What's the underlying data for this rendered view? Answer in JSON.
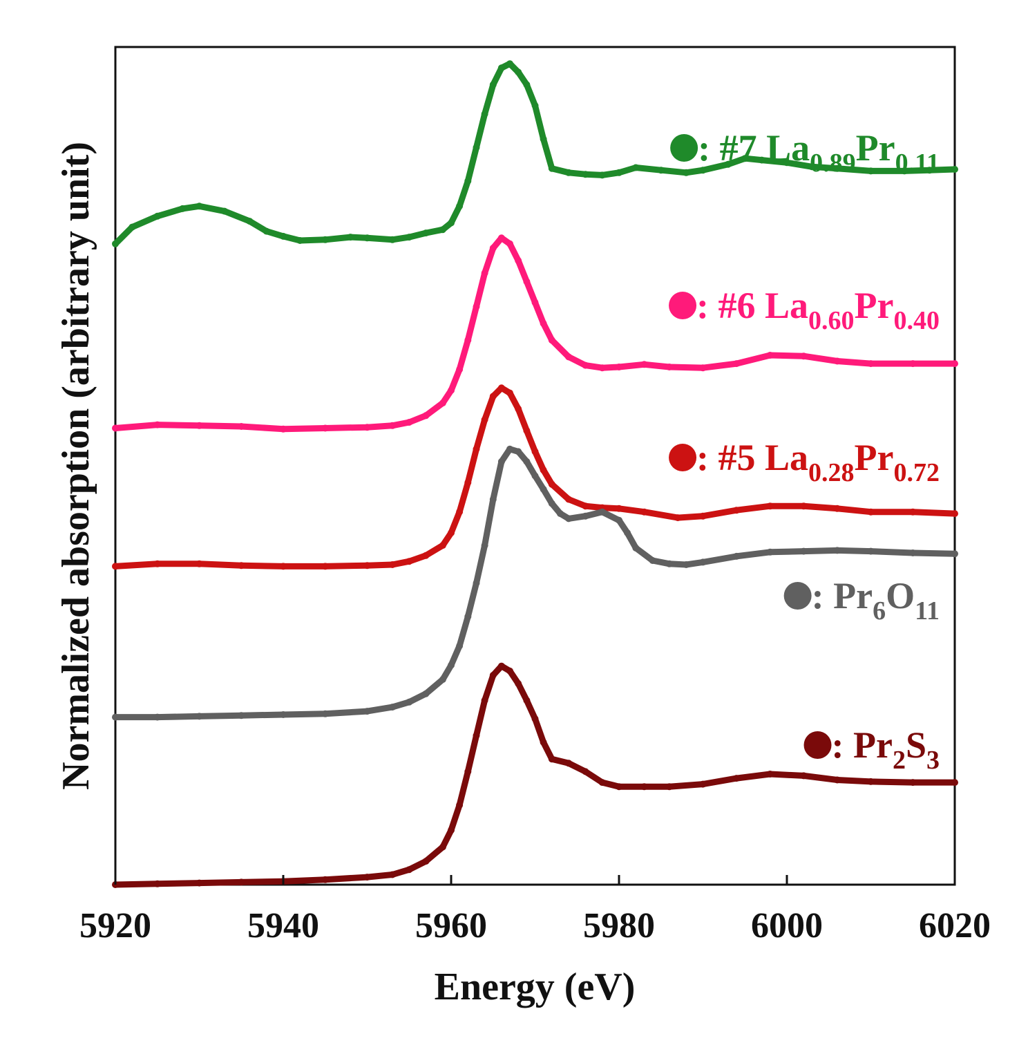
{
  "chart_data": {
    "type": "line",
    "title": "",
    "xlabel": "Energy (eV)",
    "ylabel": "Normalized absorption (arbitrary unit)",
    "xlim": [
      5920,
      6020
    ],
    "ylim": [
      0,
      10
    ],
    "xticks": [
      5920,
      5940,
      5960,
      5980,
      6000,
      6020
    ],
    "yticks_shown": false,
    "grid": false,
    "series": [
      {
        "name": "#7 La0.89Pr0.11",
        "label_prefix": ": #7 La",
        "label_parts": [
          {
            "text": ": #7 La",
            "sub": false
          },
          {
            "text": "0.89",
            "sub": true
          },
          {
            "text": "Pr",
            "sub": false
          },
          {
            "text": "0.11",
            "sub": true
          }
        ],
        "color": "#1f8a2a",
        "x": [
          5920,
          5922,
          5925,
          5928,
          5930,
          5933,
          5936,
          5938,
          5940,
          5942,
          5945,
          5948,
          5950,
          5953,
          5955,
          5957,
          5959,
          5960,
          5961,
          5962,
          5963,
          5964,
          5965,
          5966,
          5967,
          5968,
          5969,
          5970,
          5971,
          5972,
          5974,
          5976,
          5978,
          5980,
          5982,
          5985,
          5988,
          5990,
          5993,
          5995,
          5997,
          6000,
          6003,
          6006,
          6010,
          6014,
          6017,
          6020
        ],
        "y": [
          7.65,
          7.85,
          7.98,
          8.07,
          8.1,
          8.04,
          7.92,
          7.8,
          7.74,
          7.69,
          7.7,
          7.73,
          7.72,
          7.7,
          7.73,
          7.78,
          7.82,
          7.9,
          8.1,
          8.4,
          8.8,
          9.2,
          9.55,
          9.75,
          9.8,
          9.7,
          9.55,
          9.3,
          8.9,
          8.55,
          8.5,
          8.48,
          8.47,
          8.5,
          8.56,
          8.53,
          8.5,
          8.53,
          8.6,
          8.67,
          8.65,
          8.62,
          8.57,
          8.55,
          8.52,
          8.52,
          8.53,
          8.54
        ]
      },
      {
        "name": "#6 La0.60Pr0.40",
        "label_parts": [
          {
            "text": ": #6 La",
            "sub": false
          },
          {
            "text": "0.60",
            "sub": true
          },
          {
            "text": "Pr",
            "sub": false
          },
          {
            "text": "0.40",
            "sub": true
          }
        ],
        "color": "#ff1a7a",
        "x": [
          5920,
          5925,
          5930,
          5935,
          5940,
          5945,
          5950,
          5953,
          5955,
          5957,
          5959,
          5960,
          5961,
          5962,
          5963,
          5964,
          5965,
          5966,
          5967,
          5968,
          5969,
          5970,
          5971,
          5972,
          5974,
          5976,
          5978,
          5980,
          5983,
          5986,
          5990,
          5994,
          5998,
          6002,
          6006,
          6010,
          6015,
          6020
        ],
        "y": [
          5.45,
          5.49,
          5.48,
          5.47,
          5.44,
          5.45,
          5.46,
          5.48,
          5.52,
          5.6,
          5.75,
          5.9,
          6.15,
          6.5,
          6.9,
          7.3,
          7.6,
          7.72,
          7.65,
          7.45,
          7.2,
          6.95,
          6.7,
          6.5,
          6.3,
          6.2,
          6.17,
          6.18,
          6.21,
          6.18,
          6.17,
          6.22,
          6.32,
          6.31,
          6.25,
          6.22,
          6.22,
          6.22
        ]
      },
      {
        "name": "#5 La0.28Pr0.72",
        "label_parts": [
          {
            "text": ": #5 La",
            "sub": false
          },
          {
            "text": "0.28",
            "sub": true
          },
          {
            "text": "Pr",
            "sub": false
          },
          {
            "text": "0.72",
            "sub": true
          }
        ],
        "color": "#cc1212",
        "x": [
          5920,
          5925,
          5930,
          5935,
          5940,
          5945,
          5950,
          5953,
          5955,
          5957,
          5959,
          5960,
          5961,
          5962,
          5963,
          5964,
          5965,
          5966,
          5967,
          5968,
          5969,
          5970,
          5971,
          5972,
          5974,
          5976,
          5978,
          5980,
          5983,
          5987,
          5990,
          5994,
          5998,
          6002,
          6006,
          6010,
          6015,
          6020
        ],
        "y": [
          3.8,
          3.83,
          3.83,
          3.81,
          3.8,
          3.8,
          3.81,
          3.82,
          3.86,
          3.93,
          4.05,
          4.2,
          4.45,
          4.8,
          5.2,
          5.55,
          5.83,
          5.93,
          5.87,
          5.68,
          5.42,
          5.17,
          4.95,
          4.78,
          4.6,
          4.52,
          4.5,
          4.49,
          4.45,
          4.38,
          4.4,
          4.47,
          4.52,
          4.52,
          4.49,
          4.45,
          4.45,
          4.43
        ]
      },
      {
        "name": "Pr6O11",
        "label_parts": [
          {
            "text": ": Pr",
            "sub": false
          },
          {
            "text": "6",
            "sub": true
          },
          {
            "text": "O",
            "sub": false
          },
          {
            "text": "11",
            "sub": true
          }
        ],
        "color": "#606060",
        "x": [
          5920,
          5925,
          5930,
          5935,
          5940,
          5945,
          5950,
          5953,
          5955,
          5957,
          5959,
          5960,
          5961,
          5962,
          5963,
          5964,
          5965,
          5966,
          5967,
          5968,
          5969,
          5970,
          5971,
          5972,
          5973,
          5974,
          5976,
          5978,
          5980,
          5981,
          5982,
          5984,
          5986,
          5988,
          5990,
          5994,
          5998,
          6002,
          6006,
          6010,
          6015,
          6020
        ],
        "y": [
          2.0,
          2.0,
          2.01,
          2.02,
          2.03,
          2.04,
          2.07,
          2.12,
          2.18,
          2.28,
          2.45,
          2.62,
          2.85,
          3.2,
          3.6,
          4.05,
          4.6,
          5.05,
          5.2,
          5.17,
          5.05,
          4.88,
          4.72,
          4.55,
          4.43,
          4.37,
          4.4,
          4.45,
          4.35,
          4.2,
          4.02,
          3.87,
          3.83,
          3.82,
          3.85,
          3.92,
          3.97,
          3.98,
          3.99,
          3.98,
          3.96,
          3.95
        ]
      },
      {
        "name": "Pr2S3",
        "label_parts": [
          {
            "text": ": Pr",
            "sub": false
          },
          {
            "text": "2",
            "sub": true
          },
          {
            "text": "S",
            "sub": false
          },
          {
            "text": "3",
            "sub": true
          }
        ],
        "color": "#7a0a0a",
        "x": [
          5920,
          5925,
          5930,
          5935,
          5940,
          5945,
          5950,
          5953,
          5955,
          5957,
          5959,
          5960,
          5961,
          5962,
          5963,
          5964,
          5965,
          5966,
          5967,
          5968,
          5969,
          5970,
          5971,
          5972,
          5974,
          5976,
          5978,
          5980,
          5983,
          5986,
          5990,
          5994,
          5998,
          6002,
          6006,
          6010,
          6015,
          6020
        ],
        "y": [
          0.0,
          0.01,
          0.02,
          0.03,
          0.04,
          0.06,
          0.09,
          0.12,
          0.18,
          0.28,
          0.45,
          0.65,
          0.95,
          1.35,
          1.78,
          2.2,
          2.5,
          2.61,
          2.55,
          2.4,
          2.2,
          1.98,
          1.7,
          1.5,
          1.45,
          1.35,
          1.22,
          1.17,
          1.17,
          1.17,
          1.2,
          1.27,
          1.32,
          1.3,
          1.25,
          1.23,
          1.22,
          1.22
        ]
      }
    ]
  }
}
